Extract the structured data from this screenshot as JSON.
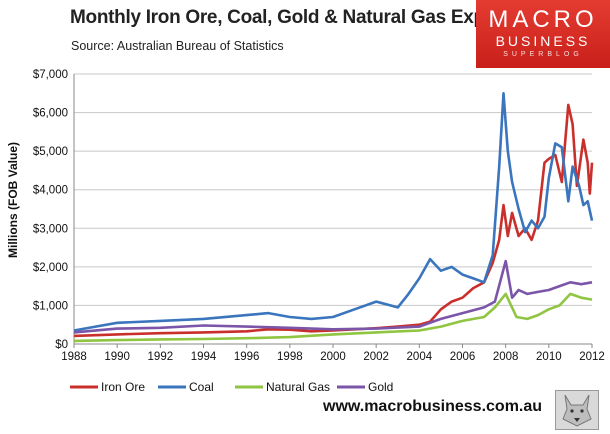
{
  "header": {
    "title": "Monthly Iron Ore, Coal, Gold & Natural Gas Exports",
    "source": "Source:  Australian Bureau of Statistics"
  },
  "logo": {
    "line1": "MACRO",
    "line2": "BUSINESS",
    "line3": "SUPERBLOG"
  },
  "footer": {
    "url": "www.macrobusiness.com.au"
  },
  "colors": {
    "iron_ore": "#c9302c",
    "coal": "#3a75bd",
    "natural_gas": "#8fc540",
    "gold": "#7b55a8",
    "grid": "#c8c8c8"
  },
  "chart_data": {
    "type": "line",
    "title": "Monthly Iron Ore, Coal, Gold & Natural Gas Exports",
    "xlabel": "",
    "ylabel": "Millions (FOB Value)",
    "xlim": [
      1988,
      2012
    ],
    "ylim": [
      0,
      7000
    ],
    "x_ticks": [
      1988,
      1990,
      1992,
      1994,
      1996,
      1998,
      2000,
      2002,
      2004,
      2006,
      2008,
      2010,
      2012
    ],
    "y_ticks": [
      0,
      1000,
      2000,
      3000,
      4000,
      5000,
      6000,
      7000
    ],
    "y_tick_labels": [
      "$0",
      "$1,000",
      "$2,000",
      "$3,000",
      "$4,000",
      "$5,000",
      "$6,000",
      "$7,000"
    ],
    "grid": "horizontal",
    "legend_position": "bottom",
    "series": [
      {
        "name": "Iron Ore",
        "color_key": "iron_ore",
        "x": [
          1988,
          1990,
          1992,
          1994,
          1996,
          1997,
          1998,
          1999,
          2000,
          2002,
          2003,
          2004,
          2004.5,
          2005,
          2005.5,
          2006,
          2006.5,
          2007,
          2007.4,
          2007.7,
          2007.9,
          2008.1,
          2008.3,
          2008.6,
          2008.9,
          2009.2,
          2009.5,
          2009.8,
          2010.0,
          2010.3,
          2010.6,
          2010.9,
          2011.1,
          2011.3,
          2011.6,
          2011.8,
          2011.9,
          2012
        ],
        "y": [
          210,
          250,
          280,
          300,
          330,
          380,
          370,
          330,
          350,
          410,
          450,
          500,
          580,
          900,
          1100,
          1200,
          1450,
          1600,
          2100,
          2700,
          3600,
          2800,
          3400,
          2800,
          3000,
          2700,
          3200,
          4700,
          4800,
          4900,
          4200,
          6200,
          5700,
          4100,
          5300,
          4700,
          3900,
          4700
        ]
      },
      {
        "name": "Coal",
        "color_key": "coal",
        "x": [
          1988,
          1989,
          1990,
          1992,
          1994,
          1996,
          1997,
          1998,
          1999,
          2000,
          2001,
          2002,
          2003,
          2003.5,
          2004,
          2004.5,
          2005,
          2005.5,
          2006,
          2006.5,
          2007,
          2007.4,
          2007.7,
          2007.9,
          2008.1,
          2008.3,
          2008.6,
          2008.9,
          2009.2,
          2009.5,
          2009.8,
          2010.0,
          2010.3,
          2010.6,
          2010.9,
          2011.1,
          2011.4,
          2011.6,
          2011.8,
          2012
        ],
        "y": [
          350,
          450,
          550,
          600,
          650,
          750,
          800,
          700,
          650,
          700,
          900,
          1100,
          950,
          1300,
          1700,
          2200,
          1900,
          2000,
          1800,
          1700,
          1600,
          2300,
          4600,
          6500,
          5000,
          4200,
          3500,
          2900,
          3200,
          3000,
          3300,
          4300,
          5200,
          5100,
          3700,
          4600,
          4100,
          3600,
          3700,
          3200
        ]
      },
      {
        "name": "Natural Gas",
        "color_key": "natural_gas",
        "x": [
          1988,
          1990,
          1992,
          1994,
          1996,
          1998,
          2000,
          2002,
          2004,
          2005,
          2006,
          2007,
          2007.5,
          2008,
          2008.5,
          2009,
          2009.5,
          2010,
          2010.5,
          2011,
          2011.5,
          2012
        ],
        "y": [
          80,
          100,
          120,
          130,
          150,
          180,
          250,
          300,
          350,
          450,
          600,
          700,
          950,
          1300,
          700,
          650,
          750,
          900,
          1000,
          1300,
          1200,
          1150
        ]
      },
      {
        "name": "Gold",
        "color_key": "gold",
        "x": [
          1988,
          1990,
          1992,
          1994,
          1996,
          1998,
          2000,
          2002,
          2004,
          2005,
          2006,
          2007,
          2007.5,
          2008,
          2008.3,
          2008.6,
          2009,
          2009.5,
          2010,
          2010.5,
          2011,
          2011.5,
          2012
        ],
        "y": [
          300,
          400,
          420,
          480,
          450,
          420,
          380,
          400,
          450,
          650,
          800,
          950,
          1100,
          2150,
          1200,
          1400,
          1300,
          1350,
          1400,
          1500,
          1600,
          1550,
          1600
        ]
      }
    ]
  }
}
